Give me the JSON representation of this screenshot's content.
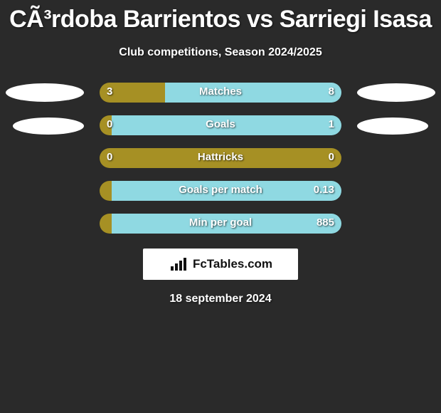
{
  "title": "CÃ³rdoba Barrientos vs Sarriegi Isasa",
  "subtitle": "Club competitions, Season 2024/2025",
  "date": "18 september 2024",
  "logo": {
    "text": "FcTables.com"
  },
  "colors": {
    "left_bar": "#a69024",
    "right_bar": "#8fd9e2",
    "background": "#2a2a2a",
    "text": "#ffffff"
  },
  "stats": [
    {
      "label": "Matches",
      "left_value": "3",
      "right_value": "8",
      "left_pct": 27,
      "right_pct": 73,
      "show_ellipses": true
    },
    {
      "label": "Goals",
      "left_value": "0",
      "right_value": "1",
      "left_pct": 5,
      "right_pct": 95,
      "show_ellipses": true,
      "ellipse_offset": true
    },
    {
      "label": "Hattricks",
      "left_value": "0",
      "right_value": "0",
      "left_pct": 100,
      "right_pct": 0,
      "show_ellipses": false
    },
    {
      "label": "Goals per match",
      "left_value": "",
      "right_value": "0.13",
      "left_pct": 5,
      "right_pct": 95,
      "show_ellipses": false
    },
    {
      "label": "Min per goal",
      "left_value": "",
      "right_value": "885",
      "left_pct": 5,
      "right_pct": 95,
      "show_ellipses": false
    }
  ]
}
